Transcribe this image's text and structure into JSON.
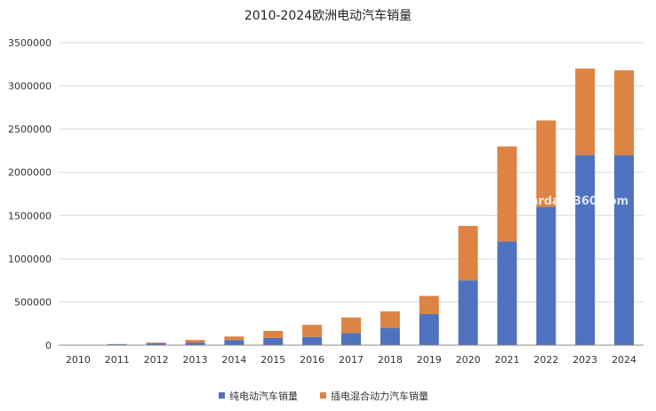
{
  "chart_data": {
    "type": "bar",
    "stacked": true,
    "title": "2010-2024欧洲电动汽车销量",
    "categories": [
      "2010",
      "2011",
      "2012",
      "2013",
      "2014",
      "2015",
      "2016",
      "2017",
      "2018",
      "2019",
      "2020",
      "2021",
      "2022",
      "2023",
      "2024"
    ],
    "series": [
      {
        "name": "纯电动汽车销量",
        "color": "#4f72be",
        "values": [
          2000,
          11000,
          20000,
          30000,
          60000,
          85000,
          95000,
          140000,
          200000,
          360000,
          750000,
          1200000,
          1600000,
          2200000,
          2200000
        ]
      },
      {
        "name": "插电混合动力汽车销量",
        "color": "#dd8344",
        "values": [
          0,
          2000,
          10000,
          30000,
          40000,
          80000,
          140000,
          180000,
          190000,
          210000,
          630000,
          1100000,
          1000000,
          1000000,
          980000
        ]
      }
    ],
    "ylim": [
      0,
      3500000
    ],
    "yticks": [
      "0",
      "500000",
      "1000000",
      "1500000",
      "2000000",
      "2500000",
      "3000000",
      "3500000"
    ],
    "grid": true,
    "legend_position": "bottom"
  },
  "watermark": "stardata360.com"
}
